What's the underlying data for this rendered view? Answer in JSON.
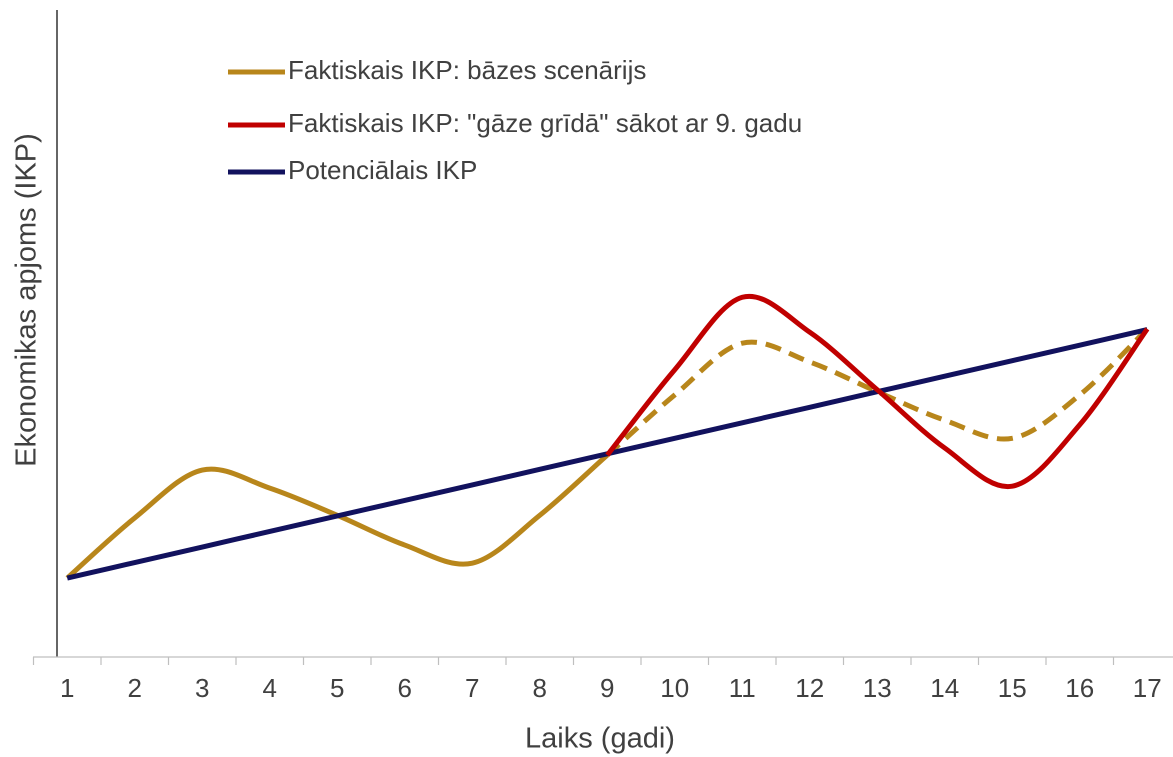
{
  "chart_data": {
    "type": "line",
    "x_label": "Laiks (gadi)",
    "y_label": "Ekonomikas apjoms (IKP)",
    "categories": [
      "1",
      "2",
      "3",
      "4",
      "5",
      "6",
      "7",
      "8",
      "9",
      "10",
      "11",
      "12",
      "13",
      "14",
      "15",
      "16",
      "17"
    ],
    "ylim": [
      0,
      100
    ],
    "smooth": true,
    "legend": "top",
    "series": [
      {
        "name": "Faktiskais IKP: bāzes scenārijs",
        "color": "#b8861b",
        "dashed_from": "9",
        "values": [
          12.2,
          21.5,
          28.9,
          26.1,
          21.9,
          17.3,
          14.5,
          21.9,
          31.2,
          40.5,
          48.5,
          45.6,
          41.0,
          36.6,
          33.8,
          40.5,
          50.7
        ]
      },
      {
        "name": "Faktiskais IKP: \"gāze grīdā\" sākot ar 9. gadu",
        "color": "#c00000",
        "values": [
          null,
          null,
          null,
          null,
          null,
          null,
          null,
          null,
          31.2,
          44.4,
          55.6,
          50.2,
          41.3,
          32.3,
          26.4,
          35.9,
          50.7
        ]
      },
      {
        "name": "Potenciālais IKP",
        "color": "#12125e",
        "values": [
          12.2,
          14.6,
          17.0,
          19.4,
          21.8,
          24.2,
          26.6,
          29.0,
          31.4,
          33.8,
          36.2,
          38.6,
          41.0,
          43.4,
          45.8,
          48.2,
          50.6
        ]
      }
    ]
  }
}
